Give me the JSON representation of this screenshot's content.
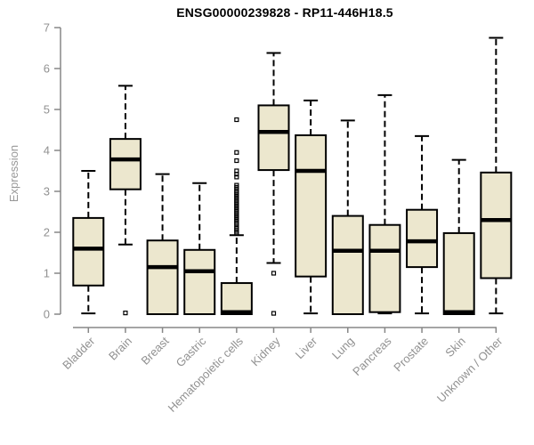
{
  "chart_data": {
    "type": "boxplot",
    "title": "ENSG00000239828 - RP11-446H18.5",
    "xlabel": "",
    "ylabel": "Expression",
    "ylim": [
      0,
      7
    ],
    "yticks": [
      0,
      1,
      2,
      3,
      4,
      5,
      6,
      7
    ],
    "grid": false,
    "legend": "none",
    "categories": [
      "Bladder",
      "Brain",
      "Breast",
      "Gastric",
      "Hematopoietic cells",
      "Kidney",
      "Liver",
      "Lung",
      "Pancreas",
      "Prostate",
      "Skin",
      "Unknown / Other"
    ],
    "boxes": [
      {
        "category": "Bladder",
        "whisker_low": 0.02,
        "q1": 0.7,
        "median": 1.6,
        "q3": 2.35,
        "whisker_high": 3.5,
        "outliers": []
      },
      {
        "category": "Brain",
        "whisker_low": 1.7,
        "q1": 3.05,
        "median": 3.78,
        "q3": 4.28,
        "whisker_high": 5.58,
        "outliers": [
          0.03
        ]
      },
      {
        "category": "Breast",
        "whisker_low": 0.0,
        "q1": 0.0,
        "median": 1.15,
        "q3": 1.8,
        "whisker_high": 3.42,
        "outliers": []
      },
      {
        "category": "Gastric",
        "whisker_low": 0.0,
        "q1": 0.0,
        "median": 1.05,
        "q3": 1.57,
        "whisker_high": 3.2,
        "outliers": []
      },
      {
        "category": "Hematopoietic cells",
        "whisker_low": 0.0,
        "q1": 0.0,
        "median": 0.05,
        "q3": 0.76,
        "whisker_high": 1.93,
        "outliers": [
          1.98,
          2.02,
          2.06,
          2.1,
          2.15,
          2.2,
          2.24,
          2.28,
          2.32,
          2.36,
          2.4,
          2.44,
          2.48,
          2.52,
          2.56,
          2.6,
          2.64,
          2.68,
          2.72,
          2.76,
          2.8,
          2.84,
          2.88,
          2.92,
          2.96,
          3.0,
          3.05,
          3.1,
          3.15,
          3.35,
          3.42,
          3.5,
          3.75,
          3.95,
          4.75
        ]
      },
      {
        "category": "Kidney",
        "whisker_low": 1.25,
        "q1": 3.52,
        "median": 4.45,
        "q3": 5.1,
        "whisker_high": 6.38,
        "outliers": [
          1.0,
          0.02
        ]
      },
      {
        "category": "Liver",
        "whisker_low": 0.02,
        "q1": 0.92,
        "median": 3.5,
        "q3": 4.37,
        "whisker_high": 5.22,
        "outliers": []
      },
      {
        "category": "Lung",
        "whisker_low": 0.0,
        "q1": 0.0,
        "median": 1.55,
        "q3": 2.4,
        "whisker_high": 4.73,
        "outliers": []
      },
      {
        "category": "Pancreas",
        "whisker_low": 0.02,
        "q1": 0.05,
        "median": 1.55,
        "q3": 2.18,
        "whisker_high": 5.35,
        "outliers": []
      },
      {
        "category": "Prostate",
        "whisker_low": 0.02,
        "q1": 1.15,
        "median": 1.78,
        "q3": 2.55,
        "whisker_high": 4.35,
        "outliers": []
      },
      {
        "category": "Skin",
        "whisker_low": 0.0,
        "q1": 0.0,
        "median": 0.05,
        "q3": 1.98,
        "whisker_high": 3.77,
        "outliers": []
      },
      {
        "category": "Unknown / Other",
        "whisker_low": 0.02,
        "q1": 0.88,
        "median": 2.3,
        "q3": 3.46,
        "whisker_high": 6.75,
        "outliers": []
      }
    ],
    "colors": {
      "box_fill": "#ece7ce",
      "box_border": "#000000",
      "median": "#000000",
      "whisker": "#000000",
      "outlier": "#000000",
      "axis_line": "#878787",
      "tick_label": "#919191",
      "title": "#000000",
      "background": "#ffffff"
    }
  }
}
